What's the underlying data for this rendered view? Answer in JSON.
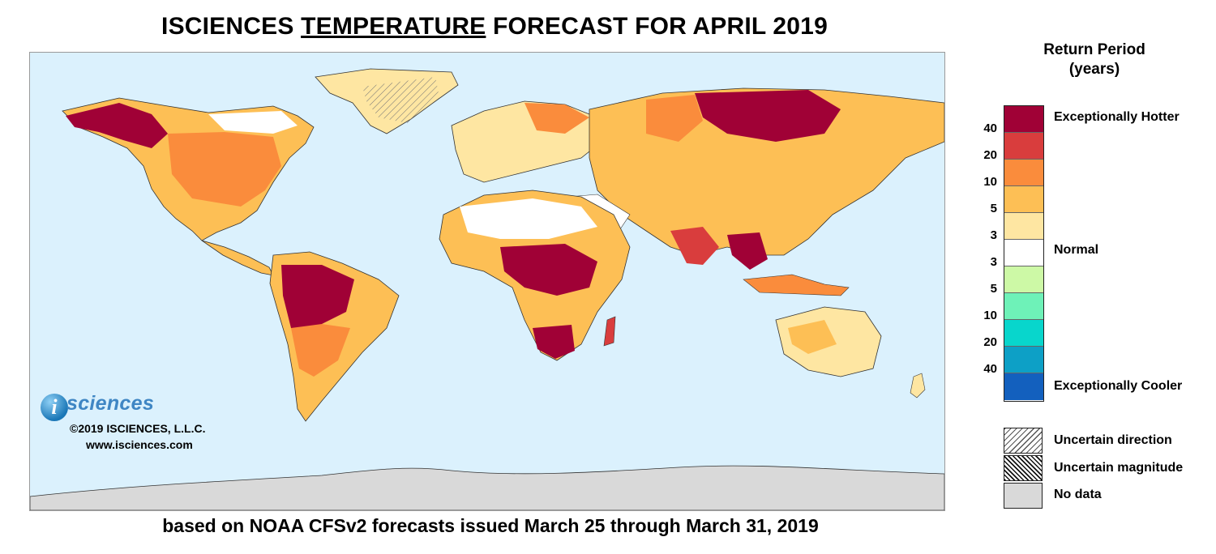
{
  "title": {
    "prefix": "ISCIENCES ",
    "emphasis": "TEMPERATURE",
    "suffix": " FORECAST FOR APRIL 2019"
  },
  "footer": "based on NOAA CFSv2 forecasts issued March 25 through March 31, 2019",
  "branding": {
    "logo_text": "isciences",
    "copyright": "©2019 ISCIENCES, L.L.C.",
    "website": "www.isciences.com"
  },
  "legend": {
    "title_line1": "Return Period",
    "title_line2": "(years)",
    "ticks": [
      "40",
      "20",
      "10",
      "5",
      "3",
      "3",
      "5",
      "10",
      "20",
      "40"
    ],
    "labels": {
      "hot": "Exceptionally Hotter",
      "normal": "Normal",
      "cool": "Exceptionally Cooler"
    },
    "scale_colors": [
      "#a00136",
      "#d93d3d",
      "#fa8c3c",
      "#fdbf55",
      "#fee6a2",
      "#ffffff",
      "#cdf9a6",
      "#6ef2b8",
      "#08d6cc",
      "#0da0c6",
      "#1360be"
    ],
    "extra": {
      "uncertain_direction": "Uncertain direction",
      "uncertain_magnitude": "Uncertain magnitude",
      "no_data": "No data"
    }
  },
  "map": {
    "ocean_color": "#dbf1fd",
    "nodata_color": "#d9d9d9",
    "border_color": "#333333"
  }
}
